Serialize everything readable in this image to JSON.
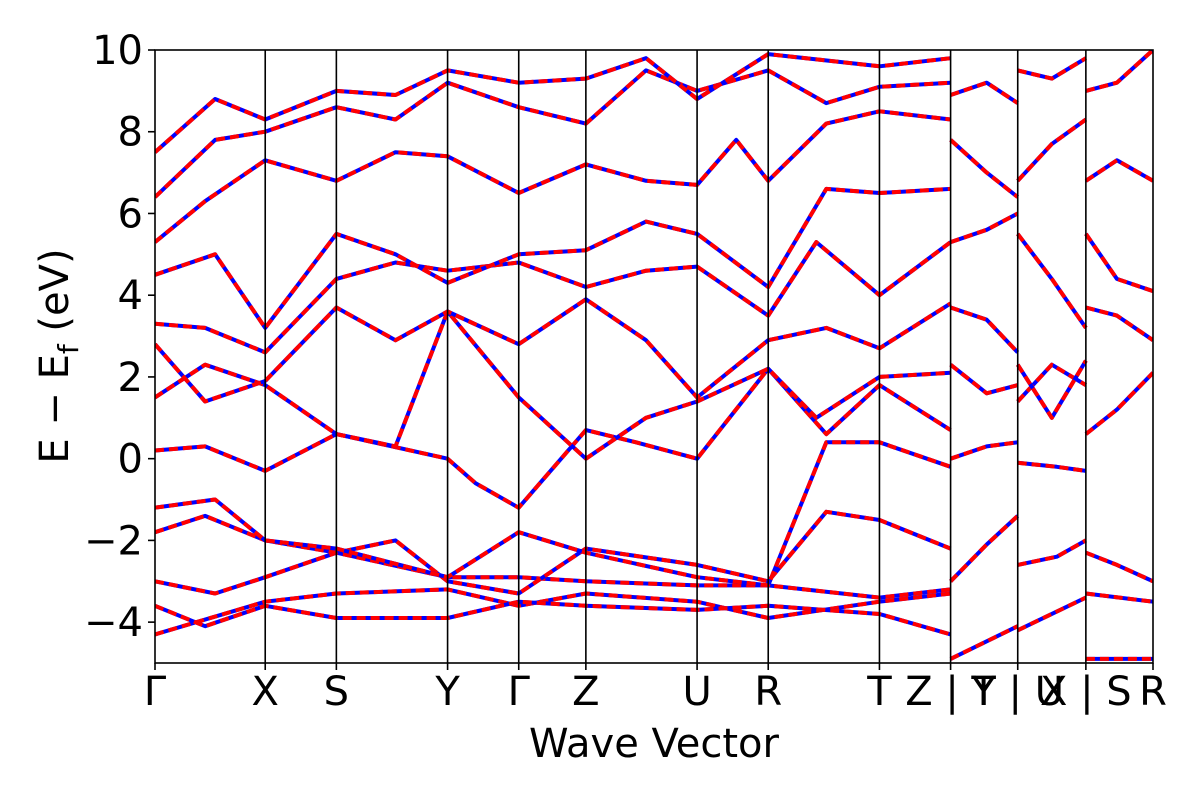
{
  "chart_data": {
    "type": "line",
    "title": "",
    "xlabel": "Wave Vector",
    "ylabel": "E − E",
    "ylabel_subscript": "f",
    "ylabel_unit": " (eV)",
    "ylim": [
      -5,
      10
    ],
    "yticks": [
      {
        "value": 10,
        "label": "10"
      },
      {
        "value": 8,
        "label": "8"
      },
      {
        "value": 6,
        "label": "6"
      },
      {
        "value": 4,
        "label": "4"
      },
      {
        "value": 2,
        "label": "2"
      },
      {
        "value": 0,
        "label": "0"
      },
      {
        "value": -2,
        "label": "−2"
      },
      {
        "value": -4,
        "label": "−4"
      }
    ],
    "kpath_ticks": [
      {
        "k": 0.0,
        "label": "Γ"
      },
      {
        "k": 1.1,
        "label": "X"
      },
      {
        "k": 1.81,
        "label": "S"
      },
      {
        "k": 2.92,
        "label": "Y"
      },
      {
        "k": 3.63,
        "label": "Γ"
      },
      {
        "k": 4.3,
        "label": "Z"
      },
      {
        "k": 5.41,
        "label": "U"
      },
      {
        "k": 6.12,
        "label": "R"
      },
      {
        "k": 7.23,
        "label": "T"
      },
      {
        "k": 7.94,
        "label": "Z | Y"
      },
      {
        "k": 8.61,
        "label": "T | U"
      },
      {
        "k": 9.29,
        "label": "X | S"
      },
      {
        "k": 9.96,
        "label": "R"
      }
    ],
    "xlim": [
      0,
      9.96
    ],
    "series_colors": {
      "band_solid": "#ff0000",
      "band_dashed": "#0000ff"
    },
    "series": [
      {
        "points": [
          [
            0,
            -4.3
          ],
          [
            1.1,
            -3.5
          ],
          [
            1.81,
            -3.3
          ],
          [
            2.92,
            -3.2
          ],
          [
            3.63,
            -3.6
          ],
          [
            4.3,
            -3.3
          ],
          [
            5.41,
            -3.5
          ],
          [
            6.12,
            -3.9
          ],
          [
            7.23,
            -3.5
          ],
          [
            7.94,
            -3.3
          ]
        ]
      },
      {
        "points": [
          [
            0,
            -3.6
          ],
          [
            0.5,
            -4.1
          ],
          [
            1.1,
            -3.6
          ],
          [
            1.81,
            -3.9
          ],
          [
            2.92,
            -3.9
          ],
          [
            3.63,
            -3.5
          ],
          [
            4.3,
            -3.6
          ],
          [
            5.41,
            -3.7
          ],
          [
            6.12,
            -3.6
          ],
          [
            7.23,
            -3.8
          ],
          [
            7.94,
            -4.3
          ]
        ]
      },
      {
        "points": [
          [
            0,
            -3.0
          ],
          [
            0.6,
            -3.3
          ],
          [
            1.1,
            -2.9
          ],
          [
            1.81,
            -2.3
          ],
          [
            2.92,
            -2.9
          ],
          [
            3.63,
            -2.9
          ],
          [
            4.3,
            -3.0
          ],
          [
            5.41,
            -3.1
          ],
          [
            6.12,
            -3.1
          ],
          [
            7.23,
            -3.4
          ],
          [
            7.94,
            -3.2
          ]
        ]
      },
      {
        "points": [
          [
            0,
            -1.8
          ],
          [
            0.5,
            -1.4
          ],
          [
            1.1,
            -2.0
          ],
          [
            1.81,
            -2.3
          ],
          [
            2.4,
            -2.0
          ],
          [
            2.92,
            -3.0
          ],
          [
            3.63,
            -3.3
          ],
          [
            4.3,
            -2.2
          ],
          [
            5.41,
            -2.6
          ],
          [
            6.12,
            -3.0
          ],
          [
            6.7,
            -1.3
          ],
          [
            7.23,
            -1.5
          ],
          [
            7.94,
            -2.2
          ]
        ]
      },
      {
        "points": [
          [
            0,
            -1.2
          ],
          [
            0.6,
            -1.0
          ],
          [
            1.1,
            -2.0
          ],
          [
            1.81,
            -2.2
          ],
          [
            2.92,
            -2.9
          ],
          [
            3.63,
            -1.8
          ],
          [
            4.3,
            -2.3
          ],
          [
            5.41,
            -2.9
          ],
          [
            6.12,
            -3.1
          ],
          [
            6.7,
            0.4
          ],
          [
            7.23,
            0.4
          ],
          [
            7.94,
            -0.2
          ]
        ]
      },
      {
        "points": [
          [
            0,
            0.2
          ],
          [
            0.5,
            0.3
          ],
          [
            1.1,
            -0.3
          ],
          [
            1.81,
            0.6
          ],
          [
            2.92,
            0.0
          ],
          [
            3.2,
            -0.6
          ],
          [
            3.63,
            -1.2
          ],
          [
            4.3,
            0.7
          ],
          [
            4.8,
            0.4
          ],
          [
            5.41,
            0.0
          ],
          [
            6.12,
            2.2
          ],
          [
            6.7,
            0.6
          ],
          [
            7.23,
            1.8
          ],
          [
            7.94,
            0.7
          ]
        ]
      },
      {
        "points": [
          [
            0,
            1.5
          ],
          [
            0.5,
            2.3
          ],
          [
            1.1,
            1.8
          ],
          [
            1.81,
            0.6
          ],
          [
            2.4,
            0.3
          ],
          [
            2.92,
            3.6
          ],
          [
            3.63,
            1.5
          ],
          [
            4.3,
            0.0
          ],
          [
            4.9,
            1.0
          ],
          [
            5.41,
            1.4
          ],
          [
            6.12,
            2.2
          ],
          [
            6.6,
            1.0
          ],
          [
            7.23,
            2.0
          ],
          [
            7.94,
            2.1
          ]
        ]
      },
      {
        "points": [
          [
            0,
            2.8
          ],
          [
            0.5,
            1.4
          ],
          [
            1.1,
            1.9
          ],
          [
            1.81,
            3.7
          ],
          [
            2.4,
            2.9
          ],
          [
            2.92,
            3.6
          ],
          [
            3.63,
            2.8
          ],
          [
            4.3,
            3.9
          ],
          [
            4.9,
            2.9
          ],
          [
            5.41,
            1.5
          ],
          [
            6.12,
            2.9
          ],
          [
            6.7,
            3.2
          ],
          [
            7.23,
            2.7
          ],
          [
            7.94,
            3.8
          ]
        ]
      },
      {
        "points": [
          [
            0,
            3.3
          ],
          [
            0.5,
            3.2
          ],
          [
            1.1,
            2.6
          ],
          [
            1.81,
            4.4
          ],
          [
            2.4,
            4.8
          ],
          [
            2.92,
            4.6
          ],
          [
            3.63,
            4.8
          ],
          [
            4.3,
            4.2
          ],
          [
            4.9,
            4.6
          ],
          [
            5.41,
            4.7
          ],
          [
            6.12,
            3.5
          ],
          [
            6.6,
            5.3
          ],
          [
            7.23,
            4.0
          ],
          [
            7.94,
            5.3
          ]
        ]
      },
      {
        "points": [
          [
            0,
            4.5
          ],
          [
            0.6,
            5.0
          ],
          [
            1.1,
            3.2
          ],
          [
            1.81,
            5.5
          ],
          [
            2.4,
            5.0
          ],
          [
            2.92,
            4.3
          ],
          [
            3.63,
            5.0
          ],
          [
            4.3,
            5.1
          ],
          [
            4.9,
            5.8
          ],
          [
            5.41,
            5.5
          ],
          [
            6.12,
            4.2
          ],
          [
            6.7,
            6.6
          ],
          [
            7.23,
            6.5
          ],
          [
            7.94,
            6.6
          ]
        ]
      },
      {
        "points": [
          [
            0,
            5.3
          ],
          [
            0.5,
            6.3
          ],
          [
            1.1,
            7.3
          ],
          [
            1.81,
            6.8
          ],
          [
            2.4,
            7.5
          ],
          [
            2.92,
            7.4
          ],
          [
            3.63,
            6.5
          ],
          [
            4.3,
            7.2
          ],
          [
            4.9,
            6.8
          ],
          [
            5.41,
            6.7
          ],
          [
            5.8,
            7.8
          ],
          [
            6.12,
            6.8
          ],
          [
            6.7,
            8.2
          ],
          [
            7.23,
            8.5
          ],
          [
            7.94,
            8.3
          ]
        ]
      },
      {
        "points": [
          [
            0,
            6.4
          ],
          [
            0.6,
            7.8
          ],
          [
            1.1,
            8.0
          ],
          [
            1.81,
            8.6
          ],
          [
            2.4,
            8.3
          ],
          [
            2.92,
            9.2
          ],
          [
            3.63,
            8.6
          ],
          [
            4.3,
            8.2
          ],
          [
            4.9,
            9.5
          ],
          [
            5.41,
            9.0
          ],
          [
            6.12,
            9.5
          ],
          [
            6.7,
            8.7
          ],
          [
            7.23,
            9.1
          ],
          [
            7.94,
            9.2
          ]
        ]
      },
      {
        "points": [
          [
            0,
            7.5
          ],
          [
            0.6,
            8.8
          ],
          [
            1.1,
            8.3
          ],
          [
            1.81,
            9.0
          ],
          [
            2.4,
            8.9
          ],
          [
            2.92,
            9.5
          ],
          [
            3.63,
            9.2
          ],
          [
            4.3,
            9.3
          ],
          [
            4.9,
            9.8
          ],
          [
            5.41,
            8.8
          ],
          [
            6.12,
            9.9
          ],
          [
            7.23,
            9.6
          ],
          [
            7.94,
            9.8
          ]
        ]
      },
      {
        "points": [
          [
            7.94,
            -4.9
          ],
          [
            8.61,
            -4.1
          ]
        ]
      },
      {
        "points": [
          [
            7.94,
            -3.0
          ],
          [
            8.3,
            -2.1
          ],
          [
            8.61,
            -1.4
          ]
        ]
      },
      {
        "points": [
          [
            7.94,
            0.0
          ],
          [
            8.3,
            0.3
          ],
          [
            8.61,
            0.4
          ]
        ]
      },
      {
        "points": [
          [
            7.94,
            2.3
          ],
          [
            8.3,
            1.6
          ],
          [
            8.61,
            1.8
          ]
        ]
      },
      {
        "points": [
          [
            7.94,
            3.7
          ],
          [
            8.3,
            3.4
          ],
          [
            8.61,
            2.6
          ]
        ]
      },
      {
        "points": [
          [
            7.94,
            5.3
          ],
          [
            8.3,
            5.6
          ],
          [
            8.61,
            6.0
          ]
        ]
      },
      {
        "points": [
          [
            7.94,
            7.8
          ],
          [
            8.3,
            7.0
          ],
          [
            8.61,
            6.4
          ]
        ]
      },
      {
        "points": [
          [
            7.94,
            8.9
          ],
          [
            8.3,
            9.2
          ],
          [
            8.61,
            8.7
          ]
        ]
      },
      {
        "points": [
          [
            8.61,
            -4.2
          ],
          [
            9.29,
            -3.4
          ]
        ]
      },
      {
        "points": [
          [
            8.61,
            -2.6
          ],
          [
            9.0,
            -2.4
          ],
          [
            9.29,
            -2.0
          ]
        ]
      },
      {
        "points": [
          [
            8.61,
            -0.1
          ],
          [
            9.0,
            -0.2
          ],
          [
            9.29,
            -0.3
          ]
        ]
      },
      {
        "points": [
          [
            8.61,
            1.4
          ],
          [
            8.95,
            2.3
          ],
          [
            9.29,
            1.8
          ]
        ]
      },
      {
        "points": [
          [
            8.61,
            2.3
          ],
          [
            8.95,
            1.0
          ],
          [
            9.29,
            2.4
          ]
        ]
      },
      {
        "points": [
          [
            8.61,
            5.5
          ],
          [
            8.95,
            4.4
          ],
          [
            9.29,
            3.2
          ]
        ]
      },
      {
        "points": [
          [
            8.61,
            6.8
          ],
          [
            8.95,
            7.7
          ],
          [
            9.29,
            8.3
          ]
        ]
      },
      {
        "points": [
          [
            8.61,
            9.5
          ],
          [
            8.95,
            9.3
          ],
          [
            9.29,
            9.8
          ]
        ]
      },
      {
        "points": [
          [
            9.29,
            -4.9
          ],
          [
            9.96,
            -4.9
          ]
        ]
      },
      {
        "points": [
          [
            9.29,
            -3.3
          ],
          [
            9.96,
            -3.5
          ]
        ]
      },
      {
        "points": [
          [
            9.29,
            -2.3
          ],
          [
            9.6,
            -2.6
          ],
          [
            9.96,
            -3.0
          ]
        ]
      },
      {
        "points": [
          [
            9.29,
            0.6
          ],
          [
            9.6,
            1.2
          ],
          [
            9.96,
            2.1
          ]
        ]
      },
      {
        "points": [
          [
            9.29,
            3.7
          ],
          [
            9.6,
            3.5
          ],
          [
            9.96,
            2.9
          ]
        ]
      },
      {
        "points": [
          [
            9.29,
            5.5
          ],
          [
            9.6,
            4.4
          ],
          [
            9.96,
            4.1
          ]
        ]
      },
      {
        "points": [
          [
            9.29,
            6.8
          ],
          [
            9.6,
            7.3
          ],
          [
            9.96,
            6.8
          ]
        ]
      },
      {
        "points": [
          [
            9.29,
            9.0
          ],
          [
            9.6,
            9.2
          ],
          [
            9.96,
            10.0
          ]
        ]
      }
    ]
  }
}
